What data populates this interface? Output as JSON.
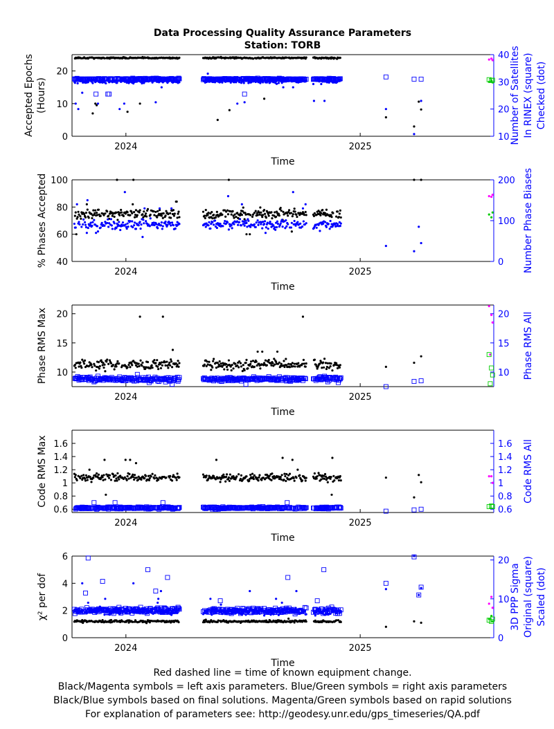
{
  "title": "Data Processing Quality Assurance Parameters",
  "subtitle": "Station: TORB",
  "footer": [
    "Red dashed line = time of known equipment change.",
    "Black/Magenta symbols = left axis parameters. Blue/Green symbols = right axis parameters",
    "Black/Blue symbols based on final solutions.  Magenta/Green symbols based on rapid solutions",
    "For explanation of parameters see: http://geodesy.unr.edu/gps_timeseries/QA.pdf"
  ],
  "colors": {
    "final_left": "#000000",
    "final_right": "#0000ff",
    "rapid_left": "#ff00ff",
    "rapid_right": "#00cc00",
    "axis": "#000000",
    "right_axis": "#0000ff"
  },
  "chart_data": [
    {
      "type": "scatter",
      "xlabel": "Time",
      "ylabel": [
        "Accepted Epochs",
        "(Hours)"
      ],
      "y2label": [
        "Number of Satellites",
        "In RINEX (square)",
        "Checked (dot)"
      ],
      "xlim": [
        2023.77,
        2025.57
      ],
      "ylim": [
        0,
        25
      ],
      "y2lim": [
        10,
        40
      ],
      "x_ticks": [
        2024,
        2025
      ],
      "y_ticks": [
        0,
        10,
        20
      ],
      "y2_ticks": [
        10,
        20,
        30,
        40
      ],
      "series": [
        {
          "axis": "left",
          "marker": "dot",
          "solution": "final",
          "gen": {
            "base": 24,
            "noise": 0.15,
            "outlier_p": 0.03,
            "outlier_vals": [
              23,
              7.5,
              7,
              12,
              11.5,
              20,
              21,
              18,
              16,
              14,
              13,
              10,
              9.5,
              8,
              5
            ]
          },
          "extras": [
            [
              2025.11,
              5.8
            ],
            [
              2025.23,
              3
            ],
            [
              2025.25,
              10.6
            ],
            [
              2025.26,
              8.2
            ]
          ]
        },
        {
          "axis": "right",
          "marker": "dot",
          "solution": "final",
          "gen": {
            "base": 30.2,
            "noise": 0.6,
            "outlier_p": 0.03,
            "outlier_vals": [
              19.5,
              23,
              22,
              26,
              28,
              33,
              18.5,
              22.5,
              20
            ]
          },
          "extras": [
            [
              2025.11,
              20
            ],
            [
              2025.23,
              10.8
            ],
            [
              2025.26,
              23
            ]
          ]
        },
        {
          "axis": "right",
          "marker": "square",
          "solution": "final",
          "gen": {
            "base": 31,
            "noise": 0.2,
            "outlier_p": 0.01,
            "outlier_vals": [
              25.5
            ]
          },
          "extras": [
            [
              2025.11,
              31.8
            ],
            [
              2025.23,
              31
            ],
            [
              2025.26,
              31
            ]
          ]
        },
        {
          "axis": "left",
          "marker": "dot",
          "solution": "rapid",
          "points": [
            [
              2025.55,
              23.5
            ],
            [
              2025.56,
              23.8
            ],
            [
              2025.565,
              23.3
            ]
          ]
        },
        {
          "axis": "right",
          "marker": "dot",
          "solution": "rapid",
          "points": [
            [
              2025.55,
              30
            ],
            [
              2025.56,
              30.5
            ],
            [
              2025.565,
              29.8
            ]
          ]
        },
        {
          "axis": "right",
          "marker": "square",
          "solution": "rapid",
          "points": [
            [
              2025.55,
              30.8
            ],
            [
              2025.56,
              30.5
            ],
            [
              2025.565,
              30.6
            ]
          ]
        }
      ]
    },
    {
      "type": "scatter",
      "xlabel": "Time",
      "ylabel": [
        "% Phases Accepted"
      ],
      "y2label": [
        "Number Phase Biases"
      ],
      "xlim": [
        2023.77,
        2025.57
      ],
      "ylim": [
        40,
        100
      ],
      "y2lim": [
        0,
        200
      ],
      "x_ticks": [
        2024,
        2025
      ],
      "y_ticks": [
        40,
        60,
        80,
        100
      ],
      "y2_ticks": [
        0,
        100,
        200
      ],
      "series": [
        {
          "axis": "left",
          "marker": "dot",
          "solution": "final",
          "gen": {
            "base": 75,
            "noise": 2.5,
            "outlier_p": 0.04,
            "outlier_vals": [
              62,
              65,
              100,
              100,
              100,
              60,
              82,
              84
            ]
          },
          "extras": [
            [
              2025.23,
              100
            ],
            [
              2025.26,
              100
            ]
          ]
        },
        {
          "axis": "right",
          "marker": "dot",
          "solution": "final",
          "gen": {
            "base": 90,
            "noise": 8,
            "outlier_p": 0.04,
            "outlier_vals": [
              60,
              160,
              150,
              130,
              70,
              140,
              170,
              40
            ]
          },
          "extras": [
            [
              2025.11,
              38
            ],
            [
              2025.23,
              25
            ],
            [
              2025.25,
              85
            ],
            [
              2025.26,
              45
            ]
          ]
        },
        {
          "axis": "left",
          "marker": "dot",
          "solution": "rapid",
          "points": [
            [
              2025.55,
              88
            ],
            [
              2025.56,
              87.5
            ],
            [
              2025.565,
              89
            ]
          ]
        },
        {
          "axis": "right",
          "marker": "dot",
          "solution": "rapid",
          "points": [
            [
              2025.55,
              115
            ],
            [
              2025.56,
              108
            ],
            [
              2025.565,
              120
            ]
          ]
        }
      ]
    },
    {
      "type": "scatter",
      "xlabel": "Time",
      "ylabel": [
        "Phase RMS Max"
      ],
      "y2label": [
        "Phase RMS All"
      ],
      "xlim": [
        2023.77,
        2025.57
      ],
      "ylim": [
        7.5,
        21.5
      ],
      "y2lim": [
        7.5,
        21.5
      ],
      "x_ticks": [
        2024,
        2025
      ],
      "y_ticks": [
        10,
        15,
        20
      ],
      "y2_ticks": [
        10,
        15,
        20
      ],
      "series": [
        {
          "axis": "left",
          "marker": "dot",
          "solution": "final",
          "gen": {
            "base": 11.3,
            "noise": 0.6,
            "outlier_p": 0.03,
            "outlier_vals": [
              19.5,
              13.5,
              9.2,
              10,
              13.8
            ]
          },
          "extras": [
            [
              2025.11,
              10.9
            ],
            [
              2025.23,
              11.6
            ],
            [
              2025.26,
              12.7
            ]
          ]
        },
        {
          "axis": "right",
          "marker": "square",
          "solution": "final",
          "gen": {
            "base": 8.8,
            "noise": 0.25,
            "outlier_p": 0.02,
            "outlier_vals": [
              8.2,
              9.6,
              7.9
            ]
          },
          "extras": [
            [
              2025.11,
              7.5
            ],
            [
              2025.23,
              8.4
            ],
            [
              2025.26,
              8.5
            ]
          ]
        },
        {
          "axis": "left",
          "marker": "dot",
          "solution": "rapid",
          "points": [
            [
              2025.55,
              21.3
            ],
            [
              2025.56,
              19.8
            ],
            [
              2025.565,
              18.5
            ],
            [
              2025.555,
              13
            ]
          ]
        },
        {
          "axis": "right",
          "marker": "square",
          "solution": "rapid",
          "points": [
            [
              2025.55,
              13
            ],
            [
              2025.56,
              10.7
            ],
            [
              2025.565,
              9.5
            ],
            [
              2025.555,
              8
            ]
          ]
        }
      ]
    },
    {
      "type": "scatter",
      "xlabel": "Time",
      "ylabel": [
        "Code RMS Max"
      ],
      "y2label": [
        "Code RMS All"
      ],
      "xlim": [
        2023.77,
        2025.57
      ],
      "ylim": [
        0.55,
        1.8
      ],
      "y2lim": [
        0.55,
        1.8
      ],
      "x_ticks": [
        2024,
        2025
      ],
      "y_ticks": [
        0.6,
        0.8,
        1.0,
        1.2,
        1.4,
        1.6
      ],
      "y_tick_labels": [
        "0.6",
        "0.8",
        "1",
        "1.2",
        "1.4",
        "1.6"
      ],
      "y2_ticks": [
        0.6,
        0.8,
        1.0,
        1.2,
        1.4,
        1.6
      ],
      "y2_tick_labels": [
        "0.6",
        "0.8",
        "1",
        "1.2",
        "1.4",
        "1.6"
      ],
      "series": [
        {
          "axis": "left",
          "marker": "dot",
          "solution": "final",
          "gen": {
            "base": 1.08,
            "noise": 0.04,
            "outlier_p": 0.03,
            "outlier_vals": [
              1.3,
              1.35,
              0.82,
              0.9,
              1.38,
              1.2
            ]
          },
          "extras": [
            [
              2025.11,
              1.08
            ],
            [
              2025.23,
              0.78
            ],
            [
              2025.25,
              1.12
            ],
            [
              2025.26,
              1.01
            ]
          ]
        },
        {
          "axis": "right",
          "marker": "square",
          "solution": "final",
          "gen": {
            "base": 0.62,
            "noise": 0.012,
            "outlier_p": 0.01,
            "outlier_vals": [
              0.7
            ]
          },
          "extras": [
            [
              2025.11,
              0.57
            ],
            [
              2025.23,
              0.59
            ],
            [
              2025.26,
              0.6
            ]
          ]
        },
        {
          "axis": "left",
          "marker": "dot",
          "solution": "rapid",
          "points": [
            [
              2025.55,
              1.1
            ],
            [
              2025.56,
              1.1
            ],
            [
              2025.565,
              1.0
            ]
          ]
        },
        {
          "axis": "right",
          "marker": "square",
          "solution": "rapid",
          "points": [
            [
              2025.55,
              0.64
            ],
            [
              2025.56,
              0.65
            ],
            [
              2025.565,
              0.64
            ]
          ]
        }
      ]
    },
    {
      "type": "scatter",
      "xlabel": "Time",
      "ylabel": [
        "χ² per dof"
      ],
      "y2label": [
        "3D PPP Sigma",
        "Original (square)",
        "Scaled (dot)"
      ],
      "xlim": [
        2023.77,
        2025.57
      ],
      "ylim": [
        0,
        6
      ],
      "y2lim": [
        0,
        21
      ],
      "x_ticks": [
        2024,
        2025
      ],
      "y_ticks": [
        0,
        2,
        4,
        6
      ],
      "y2_ticks": [
        0,
        10,
        20
      ],
      "series": [
        {
          "axis": "left",
          "marker": "dot",
          "solution": "final",
          "gen": {
            "base": 1.2,
            "noise": 0.06,
            "outlier_p": 0.01,
            "outlier_vals": [
              1.4
            ]
          },
          "extras": [
            [
              2025.11,
              0.8
            ],
            [
              2025.23,
              1.2
            ],
            [
              2025.26,
              1.1
            ]
          ]
        },
        {
          "axis": "right",
          "marker": "dot",
          "solution": "final",
          "gen": {
            "base": 6.8,
            "noise": 0.6,
            "outlier_p": 0.03,
            "outlier_vals": [
              9,
              8.5,
              10,
              12,
              14,
              16
            ]
          },
          "extras": [
            [
              2025.11,
              12.5
            ],
            [
              2025.23,
              21
            ],
            [
              2025.25,
              11
            ],
            [
              2025.26,
              12.8
            ]
          ]
        },
        {
          "axis": "right",
          "marker": "square",
          "solution": "final",
          "gen": {
            "base": 7.0,
            "noise": 0.5,
            "outlier_p": 0.04,
            "outlier_vals": [
              14.5,
              13.4,
              9.5,
              12,
              11.5,
              15.5,
              17.5,
              20.5,
              9
            ]
          },
          "extras": [
            [
              2025.11,
              14
            ],
            [
              2025.23,
              20.8
            ],
            [
              2025.25,
              11
            ],
            [
              2025.26,
              13
            ]
          ]
        },
        {
          "axis": "left",
          "marker": "dot",
          "solution": "rapid",
          "points": [
            [
              2025.55,
              2.5
            ],
            [
              2025.56,
              3.0
            ],
            [
              2025.565,
              2.2
            ]
          ]
        },
        {
          "axis": "right",
          "marker": "dot",
          "solution": "rapid",
          "points": [
            [
              2025.55,
              4.8
            ],
            [
              2025.56,
              5.6
            ],
            [
              2025.565,
              4.2
            ]
          ]
        },
        {
          "axis": "right",
          "marker": "square",
          "solution": "rapid",
          "points": [
            [
              2025.55,
              4.5
            ],
            [
              2025.56,
              4.2
            ],
            [
              2025.565,
              4.8
            ]
          ]
        }
      ]
    }
  ],
  "data_segments": [
    [
      2023.78,
      2024.23
    ],
    [
      2024.33,
      2024.77
    ],
    [
      2024.8,
      2024.92
    ]
  ]
}
